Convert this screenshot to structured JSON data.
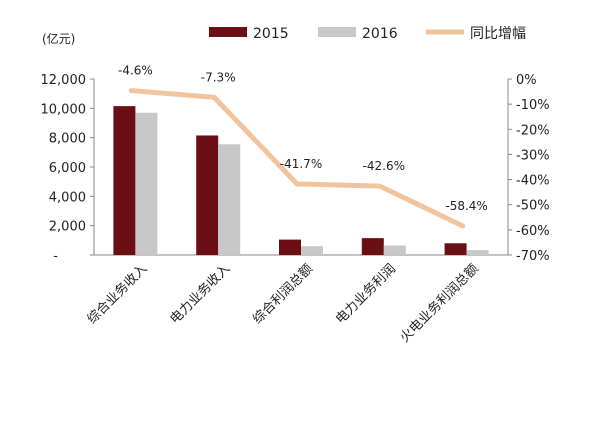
{
  "chart_data": {
    "type": "bar",
    "unit_label": "(亿元)",
    "categories": [
      "综合业务收入",
      "电力业务收入",
      "综合利润总额",
      "电力业务利润",
      "火电业务利润总额"
    ],
    "series": [
      {
        "name": "2015",
        "kind": "bar",
        "axis": "left",
        "color": "#6b0f14",
        "values": [
          10150,
          8150,
          1050,
          1150,
          800
        ]
      },
      {
        "name": "2016",
        "kind": "bar",
        "axis": "left",
        "color": "#c8c8c8",
        "values": [
          9700,
          7550,
          600,
          650,
          330
        ]
      },
      {
        "name": "同比增幅",
        "kind": "line",
        "axis": "right",
        "color": "#f2c49e",
        "values": [
          -4.6,
          -7.3,
          -41.7,
          -42.6,
          -58.4
        ],
        "labels": [
          "-4.6%",
          "-7.3%",
          "-41.7%",
          "-42.6%",
          "-58.4%"
        ]
      }
    ],
    "y_left": {
      "min": 0,
      "max": 12000,
      "ticks": [
        "-",
        "2,000",
        "4,000",
        "6,000",
        "8,000",
        "10,000",
        "12,000"
      ]
    },
    "y_right": {
      "min": -70,
      "max": 0,
      "ticks": [
        "-70%",
        "-60%",
        "-50%",
        "-40%",
        "-30%",
        "-20%",
        "-10%",
        "0%"
      ]
    },
    "grid": false,
    "legend_position": "top"
  }
}
